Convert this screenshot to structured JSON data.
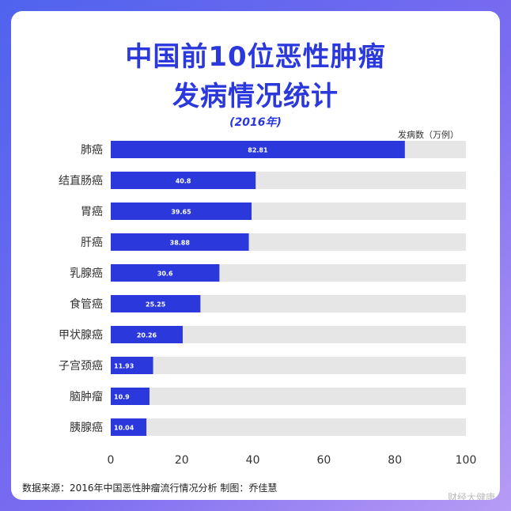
{
  "title_line1": "中国前10位恶性肿瘤",
  "title_line2": "发病情况统计",
  "subtitle": "(2016年)",
  "unit_label": "发病数（万例）",
  "source": "数据来源：2016年中国恶性肿瘤流行情况分析 制图：乔佳慧",
  "watermark": "财经大健康",
  "colors": {
    "bar": "#2b39dc",
    "track": "#e6e6e6",
    "title": "#2b39dc"
  },
  "chart_data": {
    "type": "bar",
    "orientation": "horizontal",
    "categories": [
      "肺癌",
      "结直肠癌",
      "胃癌",
      "肝癌",
      "乳腺癌",
      "食管癌",
      "甲状腺癌",
      "子宫颈癌",
      "脑肿瘤",
      "胰腺癌"
    ],
    "values": [
      82.81,
      40.8,
      39.65,
      38.88,
      30.6,
      25.25,
      20.26,
      11.93,
      10.9,
      10.04
    ],
    "value_labels": [
      "82.81",
      "40.8",
      "39.65",
      "38.88",
      "30.6",
      "25.25",
      "20.26",
      "11.93",
      "10.9",
      "10.04"
    ],
    "xlim": [
      0,
      100
    ],
    "xticks": [
      0,
      20,
      40,
      60,
      80,
      100
    ],
    "grid": false
  }
}
